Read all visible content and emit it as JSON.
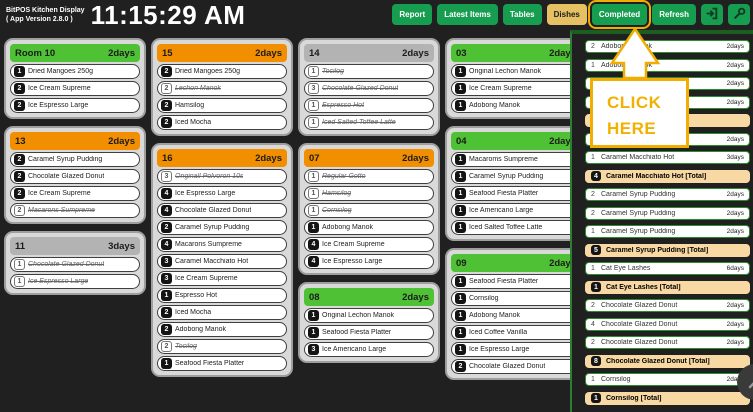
{
  "header": {
    "app_name": "BitPOS Kitchen Display",
    "app_version": "( App Version 2.8.0 )",
    "clock": "11:15:29 AM",
    "buttons": [
      {
        "label": "Report",
        "style": "green",
        "highlighted": false
      },
      {
        "label": "Latest Items",
        "style": "green",
        "highlighted": false
      },
      {
        "label": "Tables",
        "style": "green",
        "highlighted": false
      },
      {
        "label": "Dishes",
        "style": "gold",
        "highlighted": false
      },
      {
        "label": "Completed",
        "style": "green",
        "highlighted": true
      },
      {
        "label": "Refresh",
        "style": "green",
        "highlighted": false
      }
    ],
    "icon_buttons": [
      {
        "icon": "logout-icon"
      },
      {
        "icon": "settings-icon"
      }
    ]
  },
  "annotation": {
    "line1": "CLICK",
    "line2": "HERE",
    "target_button": "Completed",
    "accent_color": "#f2ae00"
  },
  "tickets_columns": [
    {
      "tickets": [
        {
          "id": "Room 10",
          "age": "2days",
          "status": "green",
          "items": [
            {
              "qty": 1,
              "name": "Dried Mangoes 250g",
              "struck": false
            },
            {
              "qty": 2,
              "name": "Ice Cream Supreme",
              "struck": false
            },
            {
              "qty": 2,
              "name": "Ice Espresso Large",
              "struck": false
            }
          ]
        },
        {
          "id": "13",
          "age": "2days",
          "status": "orange",
          "items": [
            {
              "qty": 2,
              "name": "Caramel Syrup Pudding",
              "struck": false
            },
            {
              "qty": 2,
              "name": "Chocolate Glazed Donut",
              "struck": false
            },
            {
              "qty": 2,
              "name": "Ice Cream Supreme",
              "struck": false
            },
            {
              "qty": 2,
              "name": "Macarons Sumpreme",
              "struck": true
            }
          ]
        },
        {
          "id": "11",
          "age": "3days",
          "status": "gray",
          "items": [
            {
              "qty": 1,
              "name": "Chocolate Glazed Donut",
              "struck": true
            },
            {
              "qty": 1,
              "name": "Ice Espresso Large",
              "struck": true
            }
          ]
        }
      ]
    },
    {
      "tickets": [
        {
          "id": "15",
          "age": "2days",
          "status": "orange",
          "items": [
            {
              "qty": 2,
              "name": "Dried Mangoes 250g",
              "struck": false
            },
            {
              "qty": 2,
              "name": "Lechon Manok",
              "struck": true
            },
            {
              "qty": 2,
              "name": "Hamsilog",
              "struck": false
            },
            {
              "qty": 2,
              "name": "Iced Mocha",
              "struck": false
            }
          ]
        },
        {
          "id": "16",
          "age": "2days",
          "status": "orange",
          "items": [
            {
              "qty": 3,
              "name": "Originall Polvoron 10s",
              "struck": true
            },
            {
              "qty": 4,
              "name": "Ice Espresso Large",
              "struck": false
            },
            {
              "qty": 4,
              "name": "Chocolate Glazed Donut",
              "struck": false
            },
            {
              "qty": 2,
              "name": "Caramel Syrup Pudding",
              "struck": false
            },
            {
              "qty": 4,
              "name": "Macarons Sumpreme",
              "struck": false
            },
            {
              "qty": 3,
              "name": "Caramel Macchiato Hot",
              "struck": false
            },
            {
              "qty": 3,
              "name": "Ice Cream Supreme",
              "struck": false
            },
            {
              "qty": 1,
              "name": "Espresso Hot",
              "struck": false
            },
            {
              "qty": 2,
              "name": "Iced Mocha",
              "struck": false
            },
            {
              "qty": 2,
              "name": "Adobong Manok",
              "struck": false
            },
            {
              "qty": 2,
              "name": "Tocilog",
              "struck": true
            },
            {
              "qty": 1,
              "name": "Seafood Fiesta Platter",
              "struck": false
            }
          ]
        }
      ]
    },
    {
      "tickets": [
        {
          "id": "14",
          "age": "2days",
          "status": "gray",
          "items": [
            {
              "qty": 1,
              "name": "Tocilog",
              "struck": true
            },
            {
              "qty": 3,
              "name": "Chocolate Glazed Donut",
              "struck": true
            },
            {
              "qty": 1,
              "name": "Espresso Hot",
              "struck": true
            },
            {
              "qty": 1,
              "name": "Iced Salted Toffee Latte",
              "struck": true
            }
          ]
        },
        {
          "id": "07",
          "age": "2days",
          "status": "orange",
          "items": [
            {
              "qty": 1,
              "name": "Regular Gotto",
              "struck": true
            },
            {
              "qty": 1,
              "name": "Hamsilog",
              "struck": true
            },
            {
              "qty": 1,
              "name": "Cornsilog",
              "struck": true
            },
            {
              "qty": 1,
              "name": "Adobong Manok",
              "struck": false
            },
            {
              "qty": 4,
              "name": "Ice Cream Supreme",
              "struck": false
            },
            {
              "qty": 4,
              "name": "Ice Espresso Large",
              "struck": false
            }
          ]
        },
        {
          "id": "08",
          "age": "2days",
          "status": "green",
          "items": [
            {
              "qty": 1,
              "name": "Original Lechon Manok",
              "struck": false
            },
            {
              "qty": 1,
              "name": "Seafood Fiesta Platter",
              "struck": false
            },
            {
              "qty": 3,
              "name": "Ice Americano Large",
              "struck": false
            }
          ]
        }
      ]
    },
    {
      "tickets": [
        {
          "id": "03",
          "age": "2days",
          "status": "green",
          "items": [
            {
              "qty": 1,
              "name": "Original Lechon Manok",
              "struck": false
            },
            {
              "qty": 1,
              "name": "Ice Cream Supreme",
              "struck": false
            },
            {
              "qty": 1,
              "name": "Adobong Manok",
              "struck": false
            }
          ]
        },
        {
          "id": "04",
          "age": "2days",
          "status": "green",
          "items": [
            {
              "qty": 1,
              "name": "Macaroms Sumpreme",
              "struck": false
            },
            {
              "qty": 1,
              "name": "Caramel Syrup Pudding",
              "struck": false
            },
            {
              "qty": 1,
              "name": "Seafood Fiesta Platter",
              "struck": false
            },
            {
              "qty": 1,
              "name": "Ice Americano Large",
              "struck": false
            },
            {
              "qty": 1,
              "name": "Iced Salted Toffee Latte",
              "struck": false
            }
          ]
        },
        {
          "id": "09",
          "age": "2days",
          "status": "green",
          "items": [
            {
              "qty": 1,
              "name": "Seafood Fiesta Platter",
              "struck": false
            },
            {
              "qty": 1,
              "name": "Cornsilog",
              "struck": false
            },
            {
              "qty": 1,
              "name": "Adobong Manok",
              "struck": false
            },
            {
              "qty": 1,
              "name": "Iced Coffee Vanilla",
              "struck": false
            },
            {
              "qty": 1,
              "name": "Ice Espresso Large",
              "struck": false
            },
            {
              "qty": 2,
              "name": "Chocolate Glazed Donut",
              "struck": false
            }
          ]
        }
      ]
    }
  ],
  "sidebar": {
    "rows": [
      {
        "qty": 2,
        "name": "Adobong Manok",
        "days": "2days",
        "total": false
      },
      {
        "qty": 1,
        "name": "Adobong Manok",
        "days": "2days",
        "total": false
      },
      {
        "qty": 1,
        "name": "Adobong Manok",
        "days": "2days",
        "total": false
      },
      {
        "qty": 1,
        "name": "Adobong Manok",
        "days": "2days",
        "total": false
      },
      {
        "qty": 5,
        "name": "Adobong Manok [Total]",
        "days": "",
        "total": true
      },
      {
        "qty": 3,
        "name": "Caramel Macchiato Hot",
        "days": "2days",
        "total": false
      },
      {
        "qty": 1,
        "name": "Caramel Macchiato Hot",
        "days": "3days",
        "total": false
      },
      {
        "qty": 4,
        "name": "Caramel Macchiato Hot [Total]",
        "days": "",
        "total": true
      },
      {
        "qty": 2,
        "name": "Caramel Syrup Pudding",
        "days": "2days",
        "total": false
      },
      {
        "qty": 2,
        "name": "Caramel Syrup Pudding",
        "days": "2days",
        "total": false
      },
      {
        "qty": 1,
        "name": "Caramel Syrup Pudding",
        "days": "2days",
        "total": false
      },
      {
        "qty": 5,
        "name": "Caramel Syrup Pudding [Total]",
        "days": "",
        "total": true
      },
      {
        "qty": 1,
        "name": "Cat Eye Lashes",
        "days": "6days",
        "total": false
      },
      {
        "qty": 1,
        "name": "Cat Eye Lashes [Total]",
        "days": "",
        "total": true
      },
      {
        "qty": 2,
        "name": "Chocolate Glazed Donut",
        "days": "2days",
        "total": false
      },
      {
        "qty": 4,
        "name": "Chocolate Glazed Donut",
        "days": "2days",
        "total": false
      },
      {
        "qty": 2,
        "name": "Chocolate Glazed Donut",
        "days": "2days",
        "total": false
      },
      {
        "qty": 8,
        "name": "Chocolate Glazed Donut [Total]",
        "days": "",
        "total": true
      },
      {
        "qty": 1,
        "name": "Cornsilog",
        "days": "2days",
        "total": false
      },
      {
        "qty": 1,
        "name": "Cornsilog [Total]",
        "days": "",
        "total": true
      }
    ]
  },
  "colors": {
    "button_green": "#179d4f",
    "button_gold": "#e5c163",
    "highlight_gold": "#f2ae00",
    "ticket_green": "#4fc135",
    "ticket_orange": "#f18f01",
    "ticket_gray": "#b3b3b3",
    "total_row_tan": "#f8d9a3",
    "background": "#202020"
  }
}
